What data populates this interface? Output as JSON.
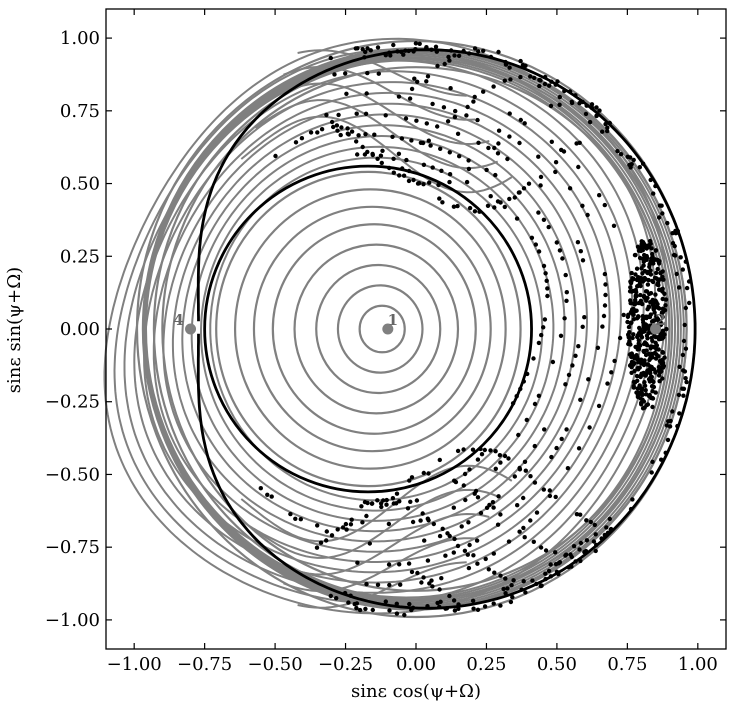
{
  "chart_data": {
    "type": "scatter",
    "title": "",
    "xlabel": "sinε cos(ψ+Ω)",
    "ylabel": "sinε sin(ψ+Ω)",
    "xlim": [
      -1.1,
      1.1
    ],
    "ylim": [
      -1.1,
      1.1
    ],
    "x_ticks": [
      -1.0,
      -0.75,
      -0.5,
      -0.25,
      0.0,
      0.25,
      0.5,
      0.75,
      1.0
    ],
    "y_ticks": [
      -1.0,
      -0.75,
      -0.5,
      -0.25,
      0.0,
      0.25,
      0.5,
      0.75,
      1.0
    ],
    "x_tick_labels": [
      "−1.00",
      "−0.75",
      "−0.50",
      "−0.25",
      "0.00",
      "0.25",
      "0.50",
      "0.75",
      "1.00"
    ],
    "y_tick_labels": [
      "−1.00",
      "−0.75",
      "−0.50",
      "−0.25",
      "0.00",
      "0.25",
      "0.50",
      "0.75",
      "1.00"
    ],
    "grid": false,
    "fixed_points": [
      {
        "label": "1",
        "x": -0.1,
        "y": 0.0
      },
      {
        "label": "2",
        "x": 0.85,
        "y": 0.0
      },
      {
        "label": "4",
        "x": -0.8,
        "y": 0.0
      }
    ],
    "boundary": {
      "cx": 0.0,
      "cy": 0.0,
      "r": 0.98
    },
    "circulation_center": {
      "x": -0.12,
      "y": 0.0
    },
    "circulation_radii": [
      0.08,
      0.15,
      0.22,
      0.29,
      0.36,
      0.42,
      0.48,
      0.54
    ],
    "separatrix_inner_radius": 0.56,
    "outer_band_radii": [
      0.9,
      0.93,
      0.96,
      0.99
    ],
    "colors": {
      "contours": "#808080",
      "separatrix": "#000000",
      "trajectory": "#000000",
      "fixed_point": "#808080"
    }
  }
}
